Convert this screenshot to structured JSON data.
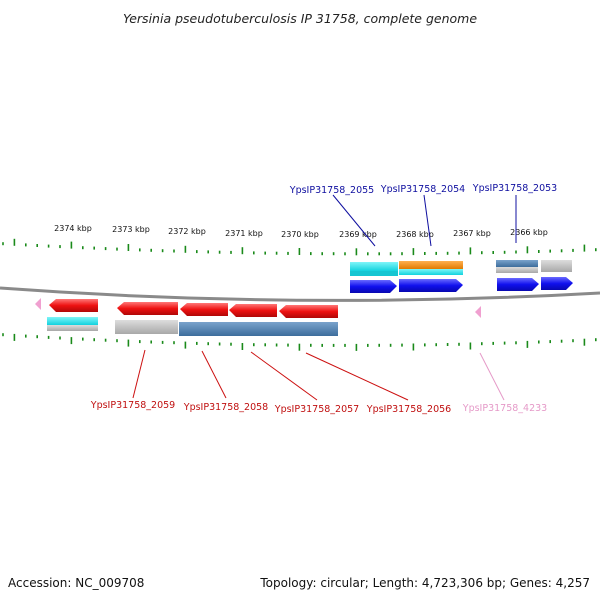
{
  "title": "Yersinia pseudotuberculosis IP 31758, complete genome",
  "scale_labels": [
    "2374 kbp",
    "2373 kbp",
    "2372 kbp",
    "2371 kbp",
    "2370 kbp",
    "2369 kbp",
    "2368 kbp",
    "2367 kbp",
    "2366 kbp"
  ],
  "gene_labels_top": [
    {
      "text": "YpsIP31758_2055",
      "color": "#1010a0"
    },
    {
      "text": "YpsIP31758_2054",
      "color": "#1010a0"
    },
    {
      "text": "YpsIP31758_2053",
      "color": "#1010a0"
    }
  ],
  "gene_labels_bottom": [
    {
      "text": "YpsIP31758_2059",
      "color": "#c01010"
    },
    {
      "text": "YpsIP31758_2058",
      "color": "#c01010"
    },
    {
      "text": "YpsIP31758_2057",
      "color": "#c01010"
    },
    {
      "text": "YpsIP31758_2056",
      "color": "#c01010"
    },
    {
      "text": "YpsIP31758_4233",
      "color": "#e59ac8"
    }
  ],
  "colors": {
    "forward_gene": "#1010ee",
    "reverse_gene": "#ee1111",
    "cyan_feature": "#22e5ee",
    "orange_feature": "#f08a10",
    "steelblue_feature": "#4a7fb0",
    "gray_feature": "#b8b8b8",
    "pink_marker": "#f0a0d0",
    "ticks": "#1a8a1a",
    "backbone": "#888888"
  },
  "footer": {
    "accession": "Accession: NC_009708",
    "topology": "Topology: circular; Length: 4,723,306 bp; Genes: 4,257"
  }
}
